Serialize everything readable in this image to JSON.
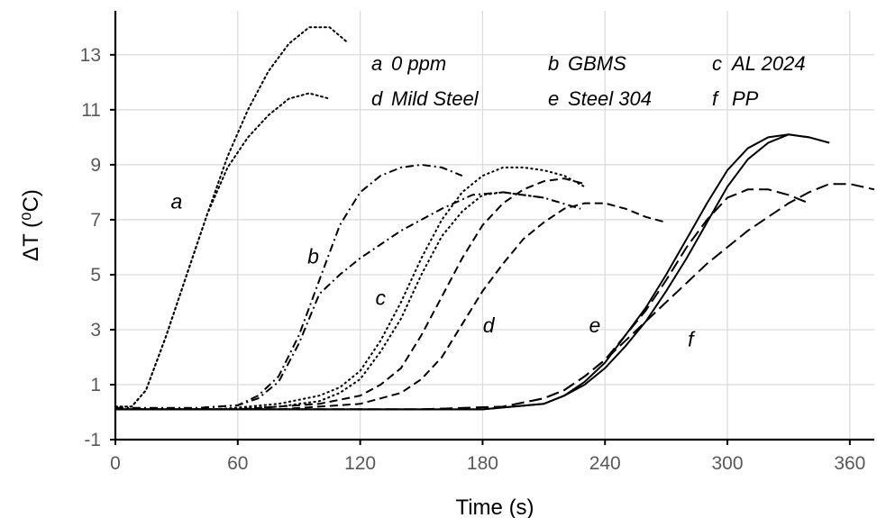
{
  "chart_data": {
    "type": "line",
    "title": "",
    "xlabel": "Time (s)",
    "ylabel": "ΔT (⁰C)",
    "xlim": [
      0,
      372
    ],
    "ylim": [
      -1,
      14.6
    ],
    "x_ticks": [
      0,
      60,
      120,
      180,
      240,
      300,
      360
    ],
    "y_ticks": [
      -1,
      1,
      3,
      5,
      7,
      9,
      11,
      13
    ],
    "grid": true,
    "legend_position": "top-right",
    "legend": [
      {
        "key": "a",
        "label": "0 ppm"
      },
      {
        "key": "b",
        "label": "GBMS"
      },
      {
        "key": "c",
        "label": "AL 2024"
      },
      {
        "key": "d",
        "label": "Mild Steel"
      },
      {
        "key": "e",
        "label": "Steel 304"
      },
      {
        "key": "f",
        "label": "PP"
      }
    ],
    "curve_labels": [
      {
        "text": "a",
        "x": 30,
        "y": 7.4
      },
      {
        "text": "b",
        "x": 97,
        "y": 5.4
      },
      {
        "text": "c",
        "x": 130,
        "y": 3.9
      },
      {
        "text": "d",
        "x": 183,
        "y": 2.9
      },
      {
        "text": "e",
        "x": 235,
        "y": 2.9
      },
      {
        "text": "f",
        "x": 282,
        "y": 2.4
      }
    ],
    "series": [
      {
        "key": "a",
        "style": "dotted",
        "x": [
          0,
          8,
          15,
          25,
          35,
          45,
          55,
          65,
          75,
          85,
          95,
          105,
          113
        ],
        "y": [
          0.2,
          0.2,
          0.8,
          2.8,
          5.0,
          7.2,
          9.3,
          11.0,
          12.4,
          13.4,
          14.0,
          14.0,
          13.5
        ]
      },
      {
        "key": "a",
        "style": "dotted",
        "x": [
          0,
          8,
          15,
          25,
          35,
          45,
          55,
          65,
          75,
          85,
          95,
          105
        ],
        "y": [
          0.2,
          0.2,
          0.8,
          2.8,
          5.0,
          7.2,
          8.9,
          10.0,
          10.8,
          11.4,
          11.6,
          11.4
        ]
      },
      {
        "key": "b",
        "style": "dash-dot",
        "x": [
          0,
          40,
          60,
          70,
          80,
          90,
          100,
          110,
          120,
          130,
          140,
          150,
          160,
          170
        ],
        "y": [
          0.15,
          0.15,
          0.25,
          0.6,
          1.3,
          2.8,
          4.8,
          6.8,
          8.0,
          8.6,
          8.9,
          9.0,
          8.9,
          8.6
        ]
      },
      {
        "key": "b",
        "style": "dash-dot",
        "x": [
          0,
          40,
          60,
          70,
          80,
          90,
          100,
          110,
          120,
          140,
          160,
          175,
          190,
          210,
          228
        ],
        "y": [
          0.15,
          0.15,
          0.25,
          0.5,
          1.1,
          2.5,
          4.3,
          5.0,
          5.6,
          6.6,
          7.4,
          7.9,
          8.0,
          7.8,
          7.4
        ]
      },
      {
        "key": "c",
        "style": "fine-dash",
        "x": [
          0,
          50,
          80,
          100,
          110,
          120,
          130,
          140,
          150,
          160,
          170,
          180,
          190,
          200,
          210,
          220,
          230
        ],
        "y": [
          0.1,
          0.1,
          0.3,
          0.6,
          0.9,
          1.5,
          2.6,
          4.0,
          5.6,
          7.0,
          8.0,
          8.6,
          8.9,
          8.9,
          8.8,
          8.6,
          8.2
        ]
      },
      {
        "key": "c",
        "style": "fine-dash",
        "x": [
          0,
          50,
          80,
          100,
          110,
          120,
          130,
          140,
          150,
          160,
          170,
          180,
          190,
          200,
          210
        ],
        "y": [
          0.1,
          0.1,
          0.2,
          0.4,
          0.7,
          1.2,
          2.2,
          3.4,
          5.0,
          6.4,
          7.3,
          7.9,
          8.0,
          7.9,
          7.8
        ]
      },
      {
        "key": "d",
        "style": "dashed",
        "x": [
          0,
          60,
          100,
          120,
          130,
          140,
          150,
          160,
          170,
          180,
          190,
          200,
          210,
          220,
          230
        ],
        "y": [
          0.1,
          0.1,
          0.3,
          0.6,
          1.0,
          1.6,
          2.8,
          4.2,
          5.6,
          6.8,
          7.6,
          8.1,
          8.4,
          8.5,
          8.3
        ]
      },
      {
        "key": "d",
        "style": "dashed",
        "x": [
          0,
          80,
          120,
          140,
          150,
          160,
          170,
          180,
          190,
          200,
          210,
          220,
          230,
          240,
          250,
          260,
          270
        ],
        "y": [
          0.1,
          0.1,
          0.3,
          0.7,
          1.2,
          2.0,
          3.2,
          4.4,
          5.4,
          6.3,
          6.9,
          7.4,
          7.6,
          7.6,
          7.4,
          7.1,
          6.9
        ]
      },
      {
        "key": "e",
        "style": "long-dash",
        "x": [
          0,
          150,
          190,
          210,
          220,
          230,
          240,
          250,
          260,
          270,
          280,
          290,
          300,
          310,
          320,
          330,
          340
        ],
        "y": [
          0.1,
          0.1,
          0.2,
          0.5,
          0.8,
          1.3,
          1.9,
          2.8,
          3.7,
          4.8,
          6.0,
          7.0,
          7.8,
          8.1,
          8.1,
          7.9,
          7.6
        ]
      },
      {
        "key": "e",
        "style": "long-dash",
        "x": [
          0,
          150,
          190,
          210,
          220,
          230,
          240,
          250,
          260,
          270,
          280,
          290,
          300,
          310,
          320,
          330,
          340,
          350,
          360,
          372
        ],
        "y": [
          0.1,
          0.1,
          0.2,
          0.5,
          0.8,
          1.3,
          1.9,
          2.6,
          3.3,
          4.0,
          4.7,
          5.4,
          6.0,
          6.6,
          7.1,
          7.6,
          8.0,
          8.3,
          8.3,
          8.1
        ]
      },
      {
        "key": "f",
        "style": "solid",
        "x": [
          0,
          180,
          210,
          220,
          230,
          240,
          250,
          260,
          270,
          280,
          290,
          300,
          310,
          320,
          330,
          340,
          350
        ],
        "y": [
          0.1,
          0.1,
          0.3,
          0.6,
          1.1,
          1.8,
          2.8,
          3.8,
          5.0,
          6.3,
          7.6,
          8.8,
          9.6,
          10.0,
          10.1,
          10.0,
          9.8
        ]
      },
      {
        "key": "f",
        "style": "solid",
        "x": [
          0,
          180,
          210,
          220,
          230,
          240,
          250,
          260,
          270,
          280,
          290,
          300,
          310,
          320,
          330,
          340
        ],
        "y": [
          0.1,
          0.1,
          0.3,
          0.6,
          1.0,
          1.6,
          2.4,
          3.3,
          4.4,
          5.6,
          6.9,
          8.2,
          9.2,
          9.8,
          10.1,
          10.0
        ]
      }
    ]
  }
}
